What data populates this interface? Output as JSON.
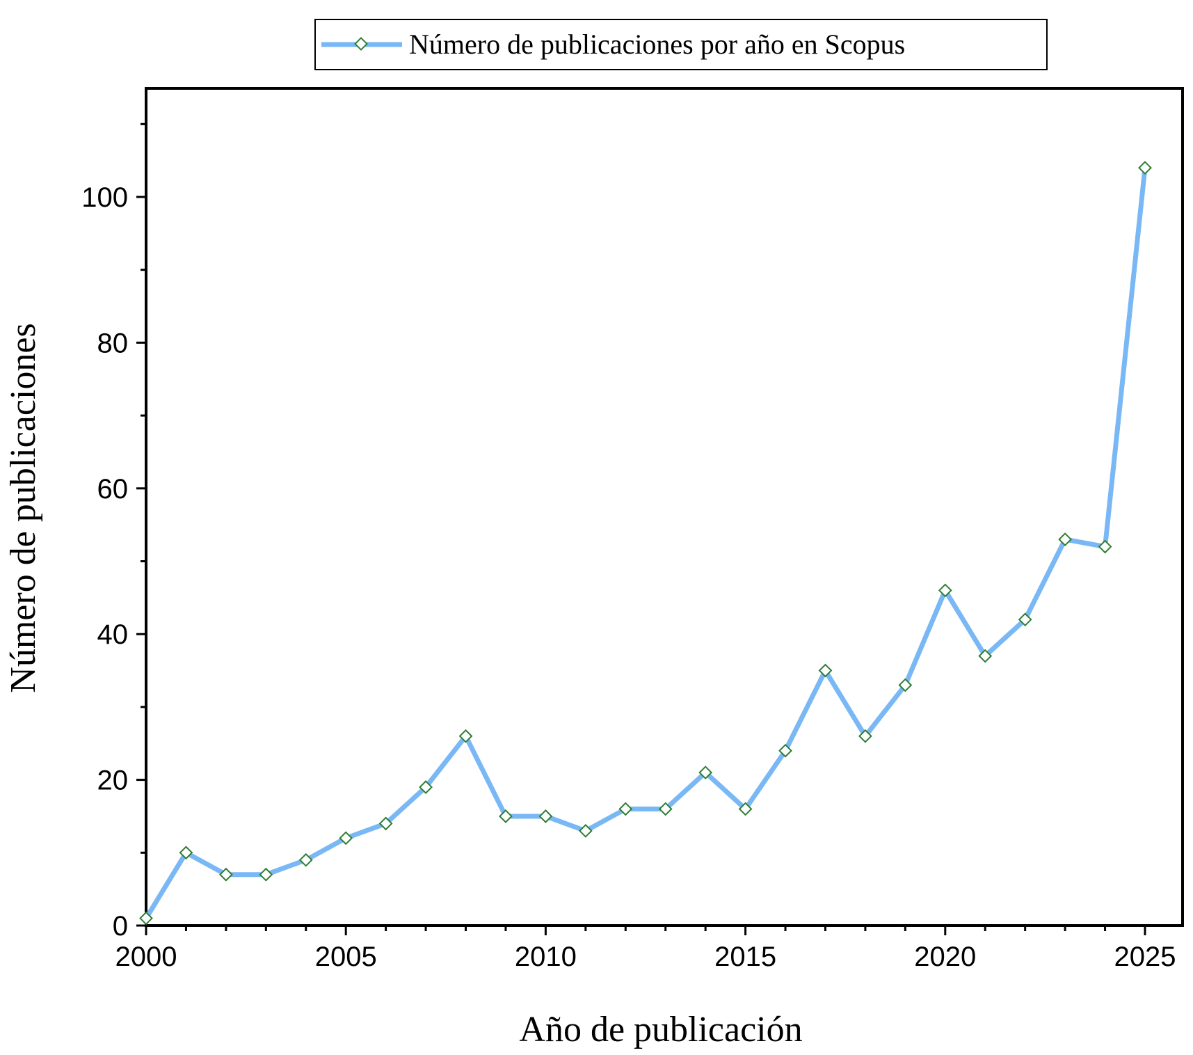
{
  "chart_data": {
    "type": "line",
    "xlabel": "Año de publicación",
    "ylabel": "Número de publicaciones",
    "xlim": [
      2000,
      2025
    ],
    "ylim": [
      0,
      115
    ],
    "x_major_ticks": [
      2000,
      2005,
      2010,
      2015,
      2020,
      2025
    ],
    "y_major_ticks": [
      0,
      20,
      40,
      60,
      80,
      100
    ],
    "grid": false,
    "legend_position": "top-center",
    "series": [
      {
        "name": "Número de publicaciones por año en Scopus",
        "color": "#7ab8f5",
        "marker_color": "#2e7d32",
        "marker": "diamond",
        "x": [
          2000,
          2001,
          2002,
          2003,
          2004,
          2005,
          2006,
          2007,
          2008,
          2009,
          2010,
          2011,
          2012,
          2013,
          2014,
          2015,
          2016,
          2017,
          2018,
          2019,
          2020,
          2021,
          2022,
          2023,
          2024,
          2025
        ],
        "y": [
          1,
          10,
          7,
          7,
          9,
          12,
          14,
          19,
          26,
          15,
          15,
          13,
          16,
          16,
          21,
          16,
          24,
          35,
          26,
          33,
          46,
          37,
          42,
          53,
          52,
          104
        ]
      }
    ]
  }
}
